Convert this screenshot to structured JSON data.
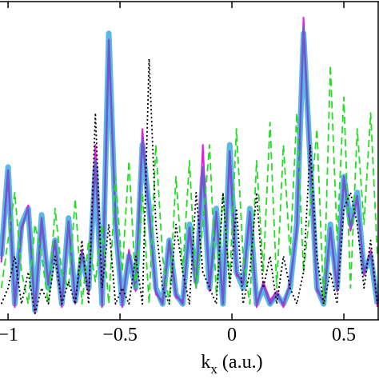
{
  "chart_data": {
    "type": "line",
    "x": [
      -1.03,
      -1.0,
      -0.97,
      -0.94,
      -0.91,
      -0.88,
      -0.85,
      -0.82,
      -0.79,
      -0.76,
      -0.73,
      -0.7,
      -0.67,
      -0.64,
      -0.61,
      -0.58,
      -0.55,
      -0.52,
      -0.49,
      -0.46,
      -0.43,
      -0.4,
      -0.37,
      -0.34,
      -0.31,
      -0.28,
      -0.25,
      -0.22,
      -0.19,
      -0.16,
      -0.13,
      -0.1,
      -0.07,
      -0.04,
      -0.01,
      0.02,
      0.05,
      0.08,
      0.11,
      0.14,
      0.17,
      0.2,
      0.23,
      0.26,
      0.29,
      0.32,
      0.35,
      0.38,
      0.41,
      0.44,
      0.47,
      0.5,
      0.53,
      0.56,
      0.59,
      0.62,
      0.65
    ],
    "series": [
      {
        "color": "#5bb8e6",
        "width": 7,
        "dash": "none",
        "values": [
          0.2,
          0.48,
          0.05,
          0.3,
          0.35,
          0.03,
          0.33,
          0.1,
          0.25,
          0.05,
          0.32,
          0.06,
          0.2,
          0.1,
          0.48,
          0.05,
          0.9,
          0.3,
          0.05,
          0.2,
          0.1,
          0.55,
          0.35,
          0.1,
          0.05,
          0.25,
          0.08,
          0.05,
          0.3,
          0.12,
          0.45,
          0.1,
          0.35,
          0.05,
          0.55,
          0.15,
          0.1,
          0.35,
          0.05,
          0.1,
          0.05,
          0.08,
          0.05,
          0.1,
          0.3,
          0.9,
          0.5,
          0.1,
          0.05,
          0.3,
          0.1,
          0.45,
          0.3,
          0.4,
          0.15,
          0.2,
          0.05
        ]
      },
      {
        "color": "#e020e0",
        "width": 2,
        "dash": "none",
        "values": [
          0.18,
          0.45,
          0.04,
          0.28,
          0.36,
          0.02,
          0.3,
          0.12,
          0.24,
          0.04,
          0.3,
          0.05,
          0.22,
          0.08,
          0.55,
          0.04,
          0.85,
          0.32,
          0.04,
          0.22,
          0.09,
          0.6,
          0.33,
          0.08,
          0.06,
          0.24,
          0.07,
          0.06,
          0.28,
          0.1,
          0.55,
          0.09,
          0.33,
          0.06,
          0.5,
          0.14,
          0.12,
          0.33,
          0.04,
          0.12,
          0.06,
          0.09,
          0.04,
          0.12,
          0.28,
          0.95,
          0.48,
          0.09,
          0.06,
          0.28,
          0.09,
          0.44,
          0.28,
          0.38,
          0.14,
          0.22,
          0.04
        ]
      },
      {
        "color": "#6a5acd",
        "width": 2.5,
        "dash": "none",
        "values": [
          0.19,
          0.47,
          0.05,
          0.29,
          0.35,
          0.03,
          0.32,
          0.11,
          0.25,
          0.05,
          0.31,
          0.06,
          0.21,
          0.09,
          0.5,
          0.05,
          0.88,
          0.31,
          0.05,
          0.21,
          0.1,
          0.57,
          0.34,
          0.09,
          0.05,
          0.25,
          0.08,
          0.05,
          0.29,
          0.11,
          0.48,
          0.1,
          0.34,
          0.05,
          0.53,
          0.15,
          0.11,
          0.34,
          0.05,
          0.11,
          0.05,
          0.08,
          0.05,
          0.11,
          0.29,
          0.92,
          0.49,
          0.1,
          0.05,
          0.29,
          0.1,
          0.45,
          0.29,
          0.39,
          0.15,
          0.21,
          0.05
        ]
      },
      {
        "color": "#22dd22",
        "width": 1.8,
        "dash": "9 5",
        "values": [
          0.1,
          0.25,
          0.4,
          0.15,
          0.05,
          0.3,
          0.2,
          0.05,
          0.35,
          0.15,
          0.1,
          0.38,
          0.05,
          0.25,
          0.12,
          0.3,
          0.05,
          0.45,
          0.15,
          0.5,
          0.1,
          0.4,
          0.05,
          0.55,
          0.2,
          0.05,
          0.45,
          0.15,
          0.5,
          0.1,
          0.3,
          0.55,
          0.08,
          0.4,
          0.12,
          0.6,
          0.2,
          0.05,
          0.5,
          0.15,
          0.62,
          0.1,
          0.55,
          0.2,
          0.65,
          0.15,
          0.35,
          0.6,
          0.05,
          0.8,
          0.25,
          0.7,
          0.1,
          0.6,
          0.3,
          0.65,
          0.2
        ]
      },
      {
        "color": "#000000",
        "width": 1.8,
        "dash": "2 3",
        "values": [
          0.05,
          0.1,
          0.2,
          0.05,
          0.15,
          0.02,
          0.1,
          0.05,
          0.2,
          0.05,
          0.12,
          0.05,
          0.25,
          0.05,
          0.65,
          0.1,
          0.3,
          0.05,
          0.1,
          0.05,
          0.2,
          0.05,
          0.82,
          0.3,
          0.1,
          0.05,
          0.3,
          0.15,
          0.05,
          0.4,
          0.15,
          0.1,
          0.05,
          0.4,
          0.1,
          0.35,
          0.05,
          0.15,
          0.4,
          0.1,
          0.2,
          0.05,
          0.2,
          0.1,
          0.05,
          0.15,
          0.55,
          0.2,
          0.05,
          0.15,
          0.05,
          0.35,
          0.4,
          0.3,
          0.1,
          0.25,
          0.05
        ]
      }
    ],
    "xlim": [
      -1.036,
      0.657
    ],
    "ylim": [
      0,
      1
    ],
    "xticks": [
      {
        "value": -1,
        "label": "−1"
      },
      {
        "value": -0.5,
        "label": "−0.5"
      },
      0,
      0.5
    ],
    "xlabel": {
      "main": "k",
      "sub": "x",
      "rest": " (a.u.)"
    }
  }
}
